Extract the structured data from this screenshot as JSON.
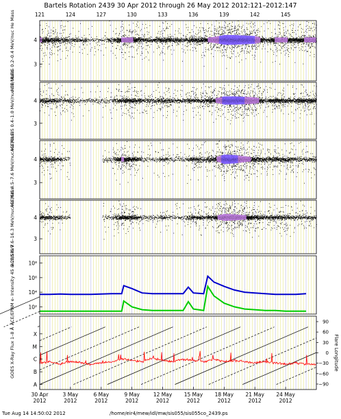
{
  "header": {
    "title": "Bartels Rotation 2439     30 Apr 2012 through 26 May 2012     2012:121–2012:147",
    "top_ticks": [
      "121",
      "124",
      "127",
      "130",
      "133",
      "136",
      "139",
      "142",
      "145"
    ]
  },
  "footer": {
    "timestamp": "Tue Aug 14 14:50:02 2012",
    "path": "/home/eir4/mew/idl/mw/sis055/sis055co_2439.ps"
  },
  "colors": {
    "points": "#000000",
    "density": "#c080e0",
    "density_core": "#8060ff",
    "electron_high": "#0000cc",
    "electron_low": "#00cc00",
    "xray": "#ff0000",
    "grid_yellow": "#e6e68c",
    "grid_blue": "#b4b4e6",
    "axis": "#000000"
  },
  "chart_data": [
    {
      "type": "scatter",
      "ylabel": "ACE/ULEIS 0.2–0.4 MeV/nuc He Mass",
      "ytick_labels": [
        "4",
        "3"
      ],
      "ytick_values": [
        4,
        3
      ],
      "ylim": [
        2.3,
        4.8
      ],
      "x": [
        121,
        122,
        123,
        124,
        125,
        126,
        127,
        128,
        129,
        130,
        131,
        132,
        133,
        134,
        135,
        136,
        137,
        138,
        139,
        140,
        141,
        142,
        143,
        144,
        145,
        146,
        147
      ],
      "series": [
        {
          "band_center": [
            4,
            4,
            4,
            4,
            4,
            4,
            4,
            4,
            4,
            4,
            4,
            4,
            4,
            4,
            4,
            4,
            4,
            4,
            4,
            4,
            4,
            4,
            4,
            4,
            4,
            4,
            4
          ],
          "intensity": [
            2.5,
            2.0,
            1.5,
            1.0,
            0.8,
            0.6,
            0.5,
            0.8,
            2.5,
            2.5,
            1.5,
            1.0,
            2.0,
            1.5,
            1.0,
            2.0,
            2.0,
            3.0,
            5.0,
            5.0,
            4.5,
            4.0,
            1.0,
            2.5,
            2.5,
            2.0,
            2.5
          ]
        }
      ]
    },
    {
      "type": "scatter",
      "ylabel": "ACE/ULEIS 0.4–1.0 MeV/nuc He Mass",
      "ytick_labels": [
        "4",
        "3"
      ],
      "ytick_values": [
        4,
        3
      ],
      "ylim": [
        2.3,
        4.8
      ],
      "x": [
        121,
        122,
        123,
        124,
        125,
        126,
        127,
        128,
        129,
        130,
        131,
        132,
        133,
        134,
        135,
        136,
        137,
        138,
        139,
        140,
        141,
        142,
        143,
        144,
        145,
        146,
        147
      ],
      "series": [
        {
          "band_center": [
            4,
            4,
            4,
            4,
            4,
            4,
            4,
            4,
            4,
            4,
            4,
            4,
            4,
            4,
            4,
            4,
            4,
            4,
            4,
            4,
            4,
            4,
            4,
            4,
            4,
            4,
            4
          ],
          "intensity": [
            1.5,
            1.5,
            1.0,
            0.8,
            0.5,
            0.4,
            0.4,
            0.6,
            1.5,
            2.0,
            1.0,
            0.8,
            1.5,
            1.0,
            0.8,
            1.5,
            1.5,
            2.0,
            4.5,
            4.5,
            4.0,
            3.5,
            0.8,
            2.0,
            1.5,
            1.5,
            2.0
          ]
        }
      ]
    },
    {
      "type": "scatter",
      "ylabel": "ACE/SIS 4.5–7.6 MeV/nuc He Mass",
      "ytick_labels": [
        "4",
        "3"
      ],
      "ytick_values": [
        4,
        3
      ],
      "ylim": [
        2.3,
        4.8
      ],
      "x": [
        121,
        122,
        123,
        124,
        125,
        126,
        127,
        128,
        129,
        130,
        131,
        132,
        133,
        134,
        135,
        136,
        137,
        138,
        139,
        140,
        141,
        142,
        143,
        144,
        145,
        146,
        147
      ],
      "series": [
        {
          "band_center": [
            4,
            4,
            4,
            4,
            4,
            4,
            4,
            4,
            4,
            4,
            4,
            4,
            4,
            4,
            4,
            4,
            4,
            4,
            4,
            4,
            4,
            4,
            4,
            4,
            4,
            4,
            4
          ],
          "intensity": [
            1.5,
            1.5,
            0.8,
            0.2,
            0.1,
            0.1,
            0.2,
            0.5,
            2.5,
            2.0,
            0.6,
            0.5,
            0.8,
            0.6,
            0.3,
            1.5,
            1.0,
            1.5,
            5.0,
            4.5,
            3.0,
            2.0,
            1.2,
            1.5,
            1.5,
            1.0,
            0.8
          ]
        }
      ]
    },
    {
      "type": "scatter",
      "ylabel": "ACE/SIS 7.6–16.3 MeV/nuc He Mass",
      "ytick_labels": [
        "4",
        "3"
      ],
      "ytick_values": [
        4,
        3
      ],
      "ylim": [
        2.3,
        4.8
      ],
      "x": [
        121,
        122,
        123,
        124,
        125,
        126,
        127,
        128,
        129,
        130,
        131,
        132,
        133,
        134,
        135,
        136,
        137,
        138,
        139,
        140,
        141,
        142,
        143,
        144,
        145,
        146,
        147
      ],
      "series": [
        {
          "band_center": [
            4,
            4,
            4,
            4,
            4,
            4,
            4,
            4,
            4,
            4,
            4,
            4,
            4,
            4,
            4,
            4,
            4,
            4,
            4,
            4,
            4,
            4,
            4,
            4,
            4,
            4,
            4
          ],
          "intensity": [
            1.5,
            1.2,
            0.8,
            0.2,
            0.1,
            0.1,
            0.2,
            0.5,
            2.2,
            1.8,
            0.6,
            0.4,
            0.8,
            0.5,
            0.3,
            1.5,
            1.0,
            1.5,
            4.0,
            3.5,
            2.5,
            1.8,
            1.0,
            1.5,
            1.3,
            0.8,
            0.8
          ]
        }
      ]
    },
    {
      "type": "line",
      "ylabel": "ACE/EPAM e- Intensity 45 & 235 keV",
      "ytick_labels": [
        "10⁸",
        "10⁶",
        "10⁴",
        "10²"
      ],
      "ytick_values": [
        8,
        6,
        4,
        2
      ],
      "yscale": "log",
      "ylim": [
        1,
        9
      ],
      "x": [
        121,
        122,
        123,
        124,
        125,
        126,
        127,
        128,
        129,
        129.2,
        130,
        131,
        132,
        133,
        134,
        135,
        135.5,
        136,
        137,
        137.4,
        138,
        139,
        140,
        141,
        142,
        143,
        144,
        145,
        146,
        147
      ],
      "series": [
        {
          "name": "45 keV",
          "color": "#0000cc",
          "values_log10": [
            3.7,
            3.7,
            3.75,
            3.7,
            3.7,
            3.7,
            3.75,
            3.8,
            3.8,
            4.9,
            4.5,
            3.9,
            3.8,
            3.8,
            3.8,
            3.8,
            4.7,
            3.9,
            3.8,
            6.2,
            5.4,
            4.8,
            4.3,
            4.0,
            3.9,
            3.8,
            3.7,
            3.7,
            3.7,
            3.8
          ]
        },
        {
          "name": "235 keV",
          "color": "#00cc00",
          "values_log10": [
            1.4,
            1.4,
            1.4,
            1.4,
            1.4,
            1.4,
            1.4,
            1.4,
            1.4,
            2.8,
            2.0,
            1.6,
            1.5,
            1.5,
            1.5,
            1.5,
            2.7,
            1.7,
            1.5,
            4.8,
            3.5,
            2.5,
            2.0,
            1.7,
            1.6,
            1.5,
            1.5,
            1.4,
            1.4,
            1.4
          ]
        }
      ]
    },
    {
      "type": "line",
      "ylabel": "GOES X-Ray Flux 1–8 Å",
      "ytick_labels": [
        "X",
        "M",
        "C",
        "B",
        "A"
      ],
      "ytick_values": [
        5,
        4,
        3,
        2,
        1
      ],
      "ylim": [
        0.6,
        6.4
      ],
      "y2label": "Flare Longitude",
      "y2tick_labels": [
        "90",
        "60",
        "30",
        "0",
        "−30",
        "−60",
        "−90"
      ],
      "y2tick_values": [
        90,
        60,
        30,
        0,
        -30,
        -60,
        -90
      ],
      "x": [
        121,
        122,
        123,
        124,
        125,
        126,
        127,
        128,
        129,
        130,
        131,
        132,
        133,
        134,
        135,
        136,
        137,
        138,
        139,
        140,
        141,
        142,
        143,
        144,
        145,
        146,
        147
      ],
      "series": [
        {
          "name": "X-Ray Flux",
          "color": "#ff0000",
          "values_class": [
            2.7,
            2.8,
            2.6,
            2.8,
            2.7,
            2.6,
            2.7,
            2.8,
            3.0,
            2.9,
            2.8,
            3.1,
            2.9,
            2.8,
            3.0,
            2.9,
            2.8,
            3.0,
            2.8,
            2.9,
            2.8,
            2.7,
            2.8,
            2.7,
            2.6,
            2.7,
            2.6
          ]
        }
      ]
    }
  ],
  "xaxis": {
    "tick_labels": [
      "30 Apr\n2012",
      "3 May\n2012",
      "6 May\n2012",
      "9 May\n2012",
      "12 May\n2012",
      "15 May\n2012",
      "18 May\n2012",
      "21 May\n2012",
      "24 May\n2012"
    ],
    "tick_doy": [
      121,
      124,
      127,
      130,
      133,
      136,
      139,
      142,
      145
    ],
    "range": [
      121,
      148
    ]
  }
}
